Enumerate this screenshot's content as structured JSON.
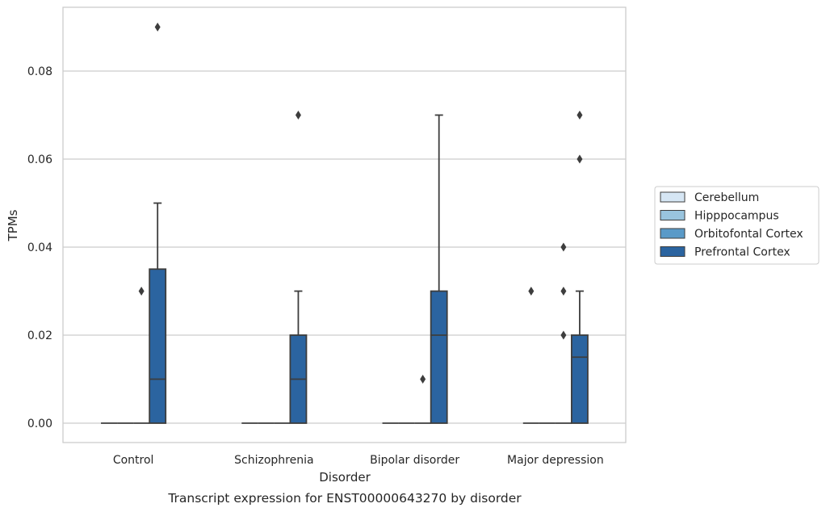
{
  "caption": "Transcript expression for ENST00000643270 by disorder",
  "chart_data": {
    "type": "box",
    "title": "",
    "xlabel": "Disorder",
    "ylabel": "TPMs",
    "ylim": [
      -0.0045,
      0.0945
    ],
    "yticks": [
      0.0,
      0.02,
      0.04,
      0.06,
      0.08
    ],
    "ytick_labels": [
      "0.00",
      "0.02",
      "0.04",
      "0.06",
      "0.08"
    ],
    "grid": "horizontal",
    "legend_position": "right",
    "categories": [
      "Control",
      "Schizophrenia",
      "Bipolar disorder",
      "Major depression"
    ],
    "series": [
      {
        "name": "Cerebellum",
        "color": "#d6e6f4",
        "boxes": [
          {
            "q1": 0,
            "median": 0,
            "q3": 0,
            "whisker_low": 0,
            "whisker_high": 0,
            "outliers": []
          },
          {
            "q1": 0,
            "median": 0,
            "q3": 0,
            "whisker_low": 0,
            "whisker_high": 0,
            "outliers": []
          },
          {
            "q1": 0,
            "median": 0,
            "q3": 0,
            "whisker_low": 0,
            "whisker_high": 0,
            "outliers": []
          },
          {
            "q1": 0,
            "median": 0,
            "q3": 0,
            "whisker_low": 0,
            "whisker_high": 0,
            "outliers": [
              0.03
            ]
          }
        ]
      },
      {
        "name": "Hipppocampus",
        "color": "#99c4de",
        "boxes": [
          {
            "q1": 0,
            "median": 0,
            "q3": 0,
            "whisker_low": 0,
            "whisker_high": 0,
            "outliers": []
          },
          {
            "q1": 0,
            "median": 0,
            "q3": 0,
            "whisker_low": 0,
            "whisker_high": 0,
            "outliers": []
          },
          {
            "q1": 0,
            "median": 0,
            "q3": 0,
            "whisker_low": 0,
            "whisker_high": 0,
            "outliers": []
          },
          {
            "q1": 0,
            "median": 0,
            "q3": 0,
            "whisker_low": 0,
            "whisker_high": 0,
            "outliers": []
          }
        ]
      },
      {
        "name": "Orbitofontal Cortex",
        "color": "#5a9ac8",
        "boxes": [
          {
            "q1": 0,
            "median": 0,
            "q3": 0,
            "whisker_low": 0,
            "whisker_high": 0,
            "outliers": [
              0.03
            ]
          },
          {
            "q1": 0,
            "median": 0,
            "q3": 0,
            "whisker_low": 0,
            "whisker_high": 0,
            "outliers": []
          },
          {
            "q1": 0,
            "median": 0,
            "q3": 0,
            "whisker_low": 0,
            "whisker_high": 0,
            "outliers": [
              0.01
            ]
          },
          {
            "q1": 0,
            "median": 0,
            "q3": 0,
            "whisker_low": 0,
            "whisker_high": 0,
            "outliers": [
              0.02,
              0.03,
              0.04
            ]
          }
        ]
      },
      {
        "name": "Prefrontal Cortex",
        "color": "#2b64a0",
        "boxes": [
          {
            "q1": 0,
            "median": 0.01,
            "q3": 0.035,
            "whisker_low": 0,
            "whisker_high": 0.05,
            "outliers": [
              0.09
            ]
          },
          {
            "q1": 0,
            "median": 0.01,
            "q3": 0.02,
            "whisker_low": 0,
            "whisker_high": 0.03,
            "outliers": [
              0.07
            ]
          },
          {
            "q1": 0,
            "median": 0.02,
            "q3": 0.03,
            "whisker_low": 0,
            "whisker_high": 0.07,
            "outliers": []
          },
          {
            "q1": 0,
            "median": 0.015,
            "q3": 0.02,
            "whisker_low": 0,
            "whisker_high": 0.03,
            "outliers": [
              0.06,
              0.07
            ]
          }
        ]
      }
    ]
  },
  "colors": {
    "axis_frame": "#cccccc",
    "gridline": "#cccccc",
    "box_edge": "#3d3d3d"
  }
}
